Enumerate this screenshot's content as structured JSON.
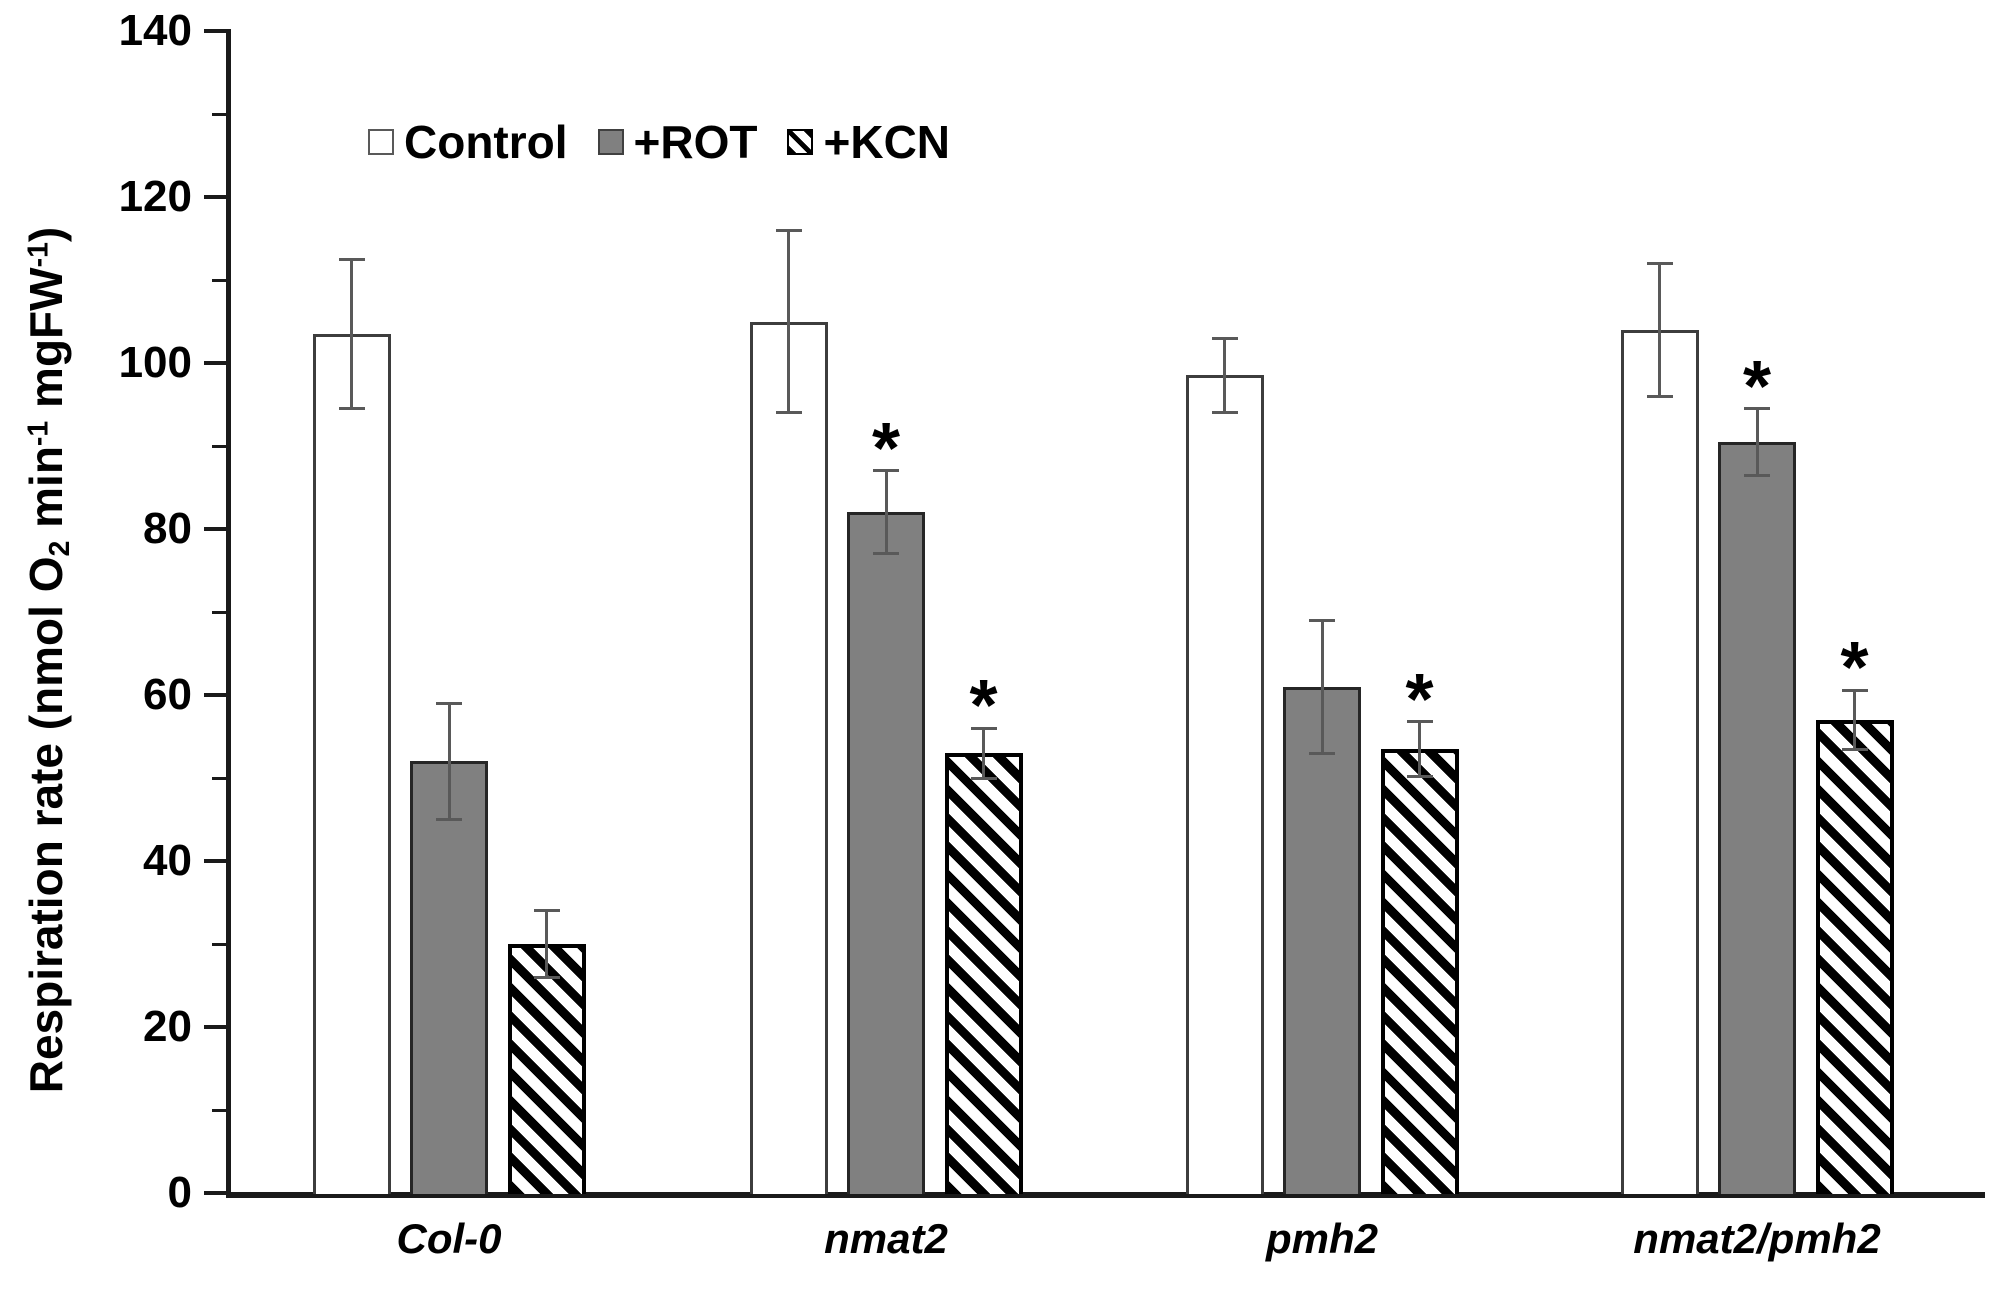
{
  "chart_data": {
    "type": "bar",
    "title": "",
    "xlabel": "",
    "ylabel_text": "Respiration rate (nmol O2 min-1 mgFW-1)",
    "ylabel_parts": {
      "a": "Respiration rate (nmol O",
      "b": "2",
      "c": " min",
      "d": "-1",
      "e": " mgFW",
      "f": "-1",
      "g": ")"
    },
    "categories": [
      "Col-0",
      "nmat2",
      "pmh2",
      "nmat2/pmh2"
    ],
    "series": [
      {
        "name": "Control",
        "style": "open",
        "values": [
          103.5,
          105,
          98.5,
          104
        ],
        "errors": [
          9,
          11,
          4.5,
          8
        ],
        "significant": [
          false,
          false,
          false,
          false
        ]
      },
      {
        "name": "+ROT",
        "style": "gray",
        "values": [
          52,
          82,
          61,
          90.5
        ],
        "errors": [
          7,
          5,
          8,
          4
        ],
        "significant": [
          false,
          true,
          false,
          true
        ]
      },
      {
        "name": "+KCN",
        "style": "hatch",
        "values": [
          30,
          53,
          53.5,
          57
        ],
        "errors": [
          4,
          3,
          3.3,
          3.6
        ],
        "significant": [
          false,
          true,
          true,
          true
        ]
      }
    ],
    "ylim": [
      0,
      140
    ],
    "yticks_major": [
      0,
      20,
      40,
      60,
      80,
      100,
      120,
      140
    ],
    "yticks_minor": [
      10,
      30,
      50,
      70,
      90,
      110,
      130
    ],
    "significance_marker": "*",
    "legend_position": "top-left-inside",
    "grid": "off",
    "colors": {
      "control_fill": "#ffffff",
      "rot_fill": "#808080",
      "hatch_stripes": "#000000",
      "bar_border": "#262626",
      "error_bar": "#595959",
      "axis": "#1a1a1a",
      "text": "#000000"
    }
  }
}
